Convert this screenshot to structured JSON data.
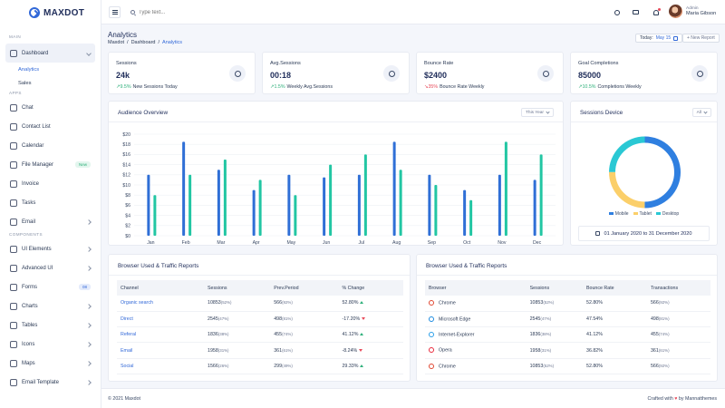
{
  "brand": {
    "name": "MAXDOT"
  },
  "sidebar": {
    "sections": {
      "main": "MAIN",
      "apps": "APPS",
      "components": "COMPONENTS"
    },
    "dashboard": {
      "label": "Dashboard",
      "subitems": [
        "Analytics",
        "Sales"
      ]
    },
    "apps": [
      {
        "label": "Chat",
        "icon": "chat-icon"
      },
      {
        "label": "Contact List",
        "icon": "contacts-icon"
      },
      {
        "label": "Calendar",
        "icon": "calendar-icon"
      },
      {
        "label": "File Manager",
        "icon": "folder-icon",
        "badge": "New"
      },
      {
        "label": "Invoice",
        "icon": "invoice-icon"
      },
      {
        "label": "Tasks",
        "icon": "tasks-icon"
      },
      {
        "label": "Email",
        "icon": "email-icon"
      }
    ],
    "components": [
      {
        "label": "UI Elements",
        "icon": "ui-icon"
      },
      {
        "label": "Advanced UI",
        "icon": "advanced-icon"
      },
      {
        "label": "Forms",
        "icon": "forms-icon",
        "badge": "08"
      },
      {
        "label": "Charts",
        "icon": "charts-icon"
      },
      {
        "label": "Tables",
        "icon": "tables-icon"
      },
      {
        "label": "Icons",
        "icon": "icons-icon"
      },
      {
        "label": "Maps",
        "icon": "maps-icon"
      },
      {
        "label": "Email Template",
        "icon": "email-template-icon"
      }
    ]
  },
  "topbar": {
    "search_placeholder": "Type text...",
    "user": {
      "role": "Admin",
      "name": "Maria Gibson"
    }
  },
  "page": {
    "title": "Analytics",
    "breadcrumb": [
      "Maxdot",
      "Dashboard",
      "Analytics"
    ],
    "today_label": "Today:",
    "today_value": "May 15",
    "new_report": "+ New Report"
  },
  "stats": [
    {
      "label": "Sessions",
      "value": "24k",
      "change": "9.5%",
      "change_text": "New Sessions Today",
      "dir": "up",
      "icon": "users-icon",
      "icon_bg": "#eef1f8"
    },
    {
      "label": "Avg.Sessions",
      "value": "00:18",
      "change": "1.5%",
      "change_text": "Weekly Avg.Sessions",
      "dir": "up",
      "icon": "clock-icon",
      "icon_bg": "#eef1f8"
    },
    {
      "label": "Bounce Rate",
      "value": "$2400",
      "change": "35%",
      "change_text": "Bounce Rate Weekly",
      "dir": "down",
      "icon": "pulse-icon",
      "icon_bg": "#eef1f8"
    },
    {
      "label": "Goal Completions",
      "value": "85000",
      "change": "10.5%",
      "change_text": "Completions Weekly",
      "dir": "up",
      "icon": "target-icon",
      "icon_bg": "#eef1f8"
    }
  ],
  "audience": {
    "title": "Audience Overview",
    "filter": "This Year"
  },
  "device": {
    "title": "Sessions Device",
    "filter": "All",
    "range": "01 January 2020 to 31 December 2020"
  },
  "chart_data": [
    {
      "type": "bar",
      "categories": [
        "Jan",
        "Feb",
        "Mar",
        "Apr",
        "May",
        "Jun",
        "Jul",
        "Aug",
        "Sep",
        "Oct",
        "Nov",
        "Dec"
      ],
      "series": [
        {
          "values": [
            12,
            18.5,
            13,
            9,
            12,
            11.5,
            12,
            18.5,
            12,
            9,
            12,
            11
          ],
          "color": "#2f6fd6"
        },
        {
          "values": [
            8,
            12,
            15,
            11,
            8,
            14,
            16,
            13,
            10,
            7,
            18.5,
            16
          ],
          "color": "#22c6a3"
        }
      ],
      "ylim": [
        0,
        20
      ],
      "yticks": [
        "$0",
        "$2",
        "$4",
        "$6",
        "$8",
        "$10",
        "$12",
        "$14",
        "$16",
        "$18",
        "$20"
      ],
      "grid": true
    },
    {
      "type": "pie",
      "categories": [
        "Mobile",
        "Tablet",
        "Desktop"
      ],
      "values": [
        50,
        25,
        25
      ],
      "colors": [
        "#2f7fe0",
        "#fbcf6a",
        "#2ac8d4"
      ],
      "legend": "bottom"
    }
  ],
  "tables": {
    "title": "Browser Used & Traffic Reports",
    "channels": {
      "headers": [
        "Channel",
        "Sessions",
        "Prev.Period",
        "% Change"
      ],
      "rows": [
        {
          "channel": "Organic search",
          "sessions": "10853",
          "sessions_pct": "(52%)",
          "prev": "566",
          "prev_pct": "(92%)",
          "change": "52.80%",
          "dir": "up"
        },
        {
          "channel": "Direct",
          "sessions": "2545",
          "sessions_pct": "(47%)",
          "prev": "498",
          "prev_pct": "(81%)",
          "change": "-17.20%",
          "dir": "down"
        },
        {
          "channel": "Referal",
          "sessions": "1836",
          "sessions_pct": "(38%)",
          "prev": "455",
          "prev_pct": "(74%)",
          "change": "41.12%",
          "dir": "up"
        },
        {
          "channel": "Email",
          "sessions": "1958",
          "sessions_pct": "(31%)",
          "prev": "361",
          "prev_pct": "(61%)",
          "change": "-8.24%",
          "dir": "down"
        },
        {
          "channel": "Social",
          "sessions": "1566",
          "sessions_pct": "(26%)",
          "prev": "299",
          "prev_pct": "(49%)",
          "change": "29.33%",
          "dir": "up"
        }
      ]
    },
    "browsers": {
      "headers": [
        "Browser",
        "Sessions",
        "Bounce Rate",
        "Transactions"
      ],
      "rows": [
        {
          "browser": "Chrome",
          "icon": "chrome-icon",
          "color": "#e0452f",
          "sessions": "10853",
          "sessions_pct": "(52%)",
          "bounce": "52.80%",
          "tx": "566",
          "tx_pct": "(92%)"
        },
        {
          "browser": "Microsoft Edge",
          "icon": "edge-icon",
          "color": "#1c8be0",
          "sessions": "2545",
          "sessions_pct": "(47%)",
          "bounce": "47.54%",
          "tx": "498",
          "tx_pct": "(81%)"
        },
        {
          "browser": "Internet-Explorer",
          "icon": "ie-icon",
          "color": "#2a9ee8",
          "sessions": "1836",
          "sessions_pct": "(38%)",
          "bounce": "41.12%",
          "tx": "455",
          "tx_pct": "(74%)"
        },
        {
          "browser": "Opera",
          "icon": "opera-icon",
          "color": "#e8283b",
          "sessions": "1958",
          "sessions_pct": "(31%)",
          "bounce": "36.82%",
          "tx": "361",
          "tx_pct": "(61%)"
        },
        {
          "browser": "Chrome",
          "icon": "chrome-icon",
          "color": "#e0452f",
          "sessions": "10853",
          "sessions_pct": "(52%)",
          "bounce": "52.80%",
          "tx": "566",
          "tx_pct": "(92%)"
        }
      ]
    }
  },
  "footer": {
    "copyright": "© 2021 Maxdot",
    "crafted_prefix": "Crafted with",
    "heart": "♥",
    "crafted_suffix": "by Mannatthemes"
  }
}
